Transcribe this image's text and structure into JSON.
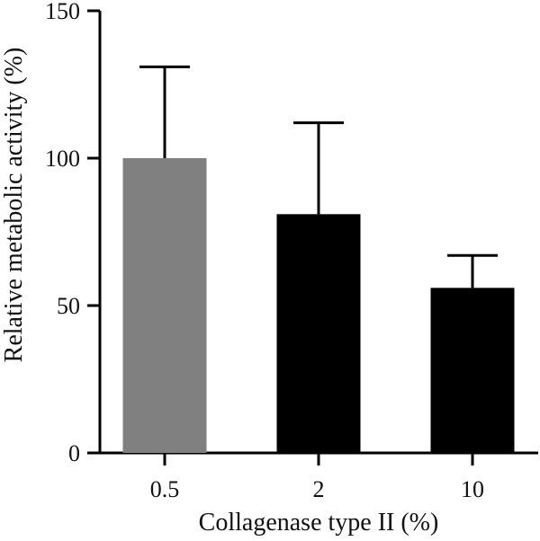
{
  "chart_data": {
    "type": "bar",
    "categories": [
      "0.5",
      "2",
      "10"
    ],
    "values": [
      100,
      81,
      56
    ],
    "error_upper": [
      131,
      112,
      67
    ],
    "bar_colors": [
      "#808080",
      "#000000",
      "#000000"
    ],
    "xlabel": "Collagenase type II (%)",
    "ylabel": "Relative metabolic activity (%)",
    "ylim": [
      0,
      150
    ],
    "yticks": [
      "0",
      "50",
      "100",
      "150"
    ],
    "grid": false
  }
}
